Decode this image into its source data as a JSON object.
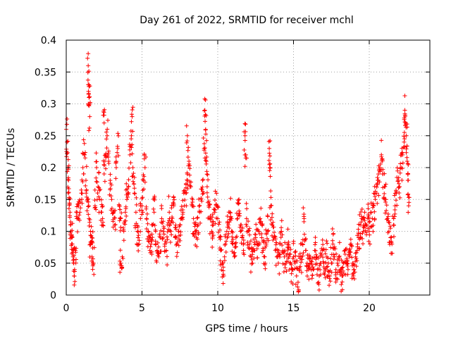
{
  "chart_data": {
    "type": "scatter",
    "title": "Day 261 of 2022, SRMTID for receiver mchl",
    "xlabel": "GPS time / hours",
    "ylabel": "SRMTID / TECUs",
    "xlim": [
      0,
      24
    ],
    "ylim": [
      0,
      0.4
    ],
    "xticks": [
      0,
      5,
      10,
      15,
      20
    ],
    "xtick_labels": [
      "0",
      "5",
      "10",
      "15",
      "20"
    ],
    "yticks": [
      0,
      0.05,
      0.1,
      0.15,
      0.2,
      0.25,
      0.3,
      0.35,
      0.4
    ],
    "ytick_labels": [
      "0",
      "0.05",
      "0.1",
      "0.15",
      "0.2",
      "0.25",
      "0.3",
      "0.35",
      "0.4"
    ],
    "grid": true,
    "marker": "+",
    "color": "#ff0000",
    "series": [
      {
        "name": "SRMTID",
        "description_of_trend": "noisy scatter of many '+' markers",
        "points": [
          [
            0.0,
            0.26
          ],
          [
            0.05,
            0.24
          ],
          [
            0.1,
            0.2
          ],
          [
            0.15,
            0.18
          ],
          [
            0.2,
            0.15
          ],
          [
            0.25,
            0.13
          ],
          [
            0.3,
            0.1
          ],
          [
            0.35,
            0.09
          ],
          [
            0.4,
            0.08
          ],
          [
            0.45,
            0.06
          ],
          [
            0.5,
            0.05
          ],
          [
            0.55,
            0.04
          ],
          [
            0.6,
            0.07
          ],
          [
            0.7,
            0.12
          ],
          [
            0.8,
            0.14
          ],
          [
            0.9,
            0.13
          ],
          [
            1.0,
            0.16
          ],
          [
            1.1,
            0.2
          ],
          [
            1.2,
            0.22
          ],
          [
            1.3,
            0.18
          ],
          [
            1.4,
            0.15
          ],
          [
            1.5,
            0.12
          ],
          [
            1.6,
            0.1
          ],
          [
            1.7,
            0.09
          ],
          [
            1.45,
            0.36
          ],
          [
            1.5,
            0.33
          ],
          [
            1.5,
            0.31
          ],
          [
            1.55,
            0.28
          ],
          [
            1.6,
            0.08
          ],
          [
            1.7,
            0.06
          ],
          [
            1.8,
            0.05
          ],
          [
            1.9,
            0.14
          ],
          [
            2.0,
            0.2
          ],
          [
            2.1,
            0.17
          ],
          [
            2.2,
            0.15
          ],
          [
            2.3,
            0.13
          ],
          [
            2.4,
            0.12
          ],
          [
            2.5,
            0.19
          ],
          [
            2.6,
            0.22
          ],
          [
            2.5,
            0.27
          ],
          [
            2.7,
            0.25
          ],
          [
            2.8,
            0.21
          ],
          [
            2.9,
            0.18
          ],
          [
            3.0,
            0.15
          ],
          [
            3.1,
            0.13
          ],
          [
            3.2,
            0.11
          ],
          [
            3.3,
            0.2
          ],
          [
            3.4,
            0.23
          ],
          [
            3.5,
            0.14
          ],
          [
            3.6,
            0.12
          ],
          [
            3.6,
            0.05
          ],
          [
            3.7,
            0.06
          ],
          [
            3.8,
            0.1
          ],
          [
            3.9,
            0.13
          ],
          [
            4.0,
            0.15
          ],
          [
            4.1,
            0.17
          ],
          [
            4.2,
            0.22
          ],
          [
            4.3,
            0.25
          ],
          [
            4.35,
            0.28
          ],
          [
            4.4,
            0.2
          ],
          [
            4.5,
            0.16
          ],
          [
            4.6,
            0.13
          ],
          [
            4.7,
            0.1
          ],
          [
            4.8,
            0.08
          ],
          [
            4.9,
            0.12
          ],
          [
            5.0,
            0.14
          ],
          [
            5.1,
            0.18
          ],
          [
            5.2,
            0.2
          ],
          [
            5.3,
            0.12
          ],
          [
            5.4,
            0.1
          ],
          [
            5.5,
            0.09
          ],
          [
            5.6,
            0.08
          ],
          [
            5.7,
            0.11
          ],
          [
            5.8,
            0.13
          ],
          [
            5.9,
            0.1
          ],
          [
            6.0,
            0.07
          ],
          [
            6.1,
            0.06
          ],
          [
            6.2,
            0.09
          ],
          [
            6.3,
            0.12
          ],
          [
            6.4,
            0.1
          ],
          [
            6.5,
            0.08
          ],
          [
            6.6,
            0.07
          ],
          [
            6.7,
            0.11
          ],
          [
            6.8,
            0.13
          ],
          [
            6.9,
            0.1
          ],
          [
            7.0,
            0.12
          ],
          [
            7.1,
            0.14
          ],
          [
            7.2,
            0.09
          ],
          [
            7.3,
            0.08
          ],
          [
            7.4,
            0.1
          ],
          [
            7.5,
            0.11
          ],
          [
            7.6,
            0.12
          ],
          [
            7.7,
            0.13
          ],
          [
            7.8,
            0.14
          ],
          [
            7.9,
            0.16
          ],
          [
            8.0,
            0.18
          ],
          [
            8.0,
            0.25
          ],
          [
            8.1,
            0.21
          ],
          [
            8.2,
            0.17
          ],
          [
            8.3,
            0.14
          ],
          [
            8.4,
            0.12
          ],
          [
            8.5,
            0.1
          ],
          [
            8.6,
            0.09
          ],
          [
            8.7,
            0.11
          ],
          [
            8.8,
            0.13
          ],
          [
            8.9,
            0.15
          ],
          [
            9.0,
            0.18
          ],
          [
            9.1,
            0.23
          ],
          [
            9.15,
            0.29
          ],
          [
            9.2,
            0.26
          ],
          [
            9.25,
            0.21
          ],
          [
            9.3,
            0.17
          ],
          [
            9.4,
            0.14
          ],
          [
            9.5,
            0.12
          ],
          [
            9.6,
            0.1
          ],
          [
            9.7,
            0.11
          ],
          [
            9.8,
            0.13
          ],
          [
            9.9,
            0.14
          ],
          [
            10.0,
            0.12
          ],
          [
            10.1,
            0.09
          ],
          [
            10.2,
            0.07
          ],
          [
            10.3,
            0.05
          ],
          [
            10.4,
            0.03
          ],
          [
            10.5,
            0.08
          ],
          [
            10.6,
            0.1
          ],
          [
            10.7,
            0.11
          ],
          [
            10.8,
            0.13
          ],
          [
            10.9,
            0.1
          ],
          [
            11.0,
            0.08
          ],
          [
            11.1,
            0.06
          ],
          [
            11.2,
            0.09
          ],
          [
            11.3,
            0.12
          ],
          [
            11.4,
            0.15
          ],
          [
            11.5,
            0.11
          ],
          [
            11.6,
            0.09
          ],
          [
            11.7,
            0.07
          ],
          [
            11.8,
            0.25
          ],
          [
            11.85,
            0.22
          ],
          [
            11.9,
            0.12
          ],
          [
            12.0,
            0.1
          ],
          [
            12.1,
            0.08
          ],
          [
            12.2,
            0.06
          ],
          [
            12.3,
            0.05
          ],
          [
            12.4,
            0.07
          ],
          [
            12.5,
            0.09
          ],
          [
            12.6,
            0.08
          ],
          [
            12.7,
            0.1
          ],
          [
            12.8,
            0.12
          ],
          [
            12.9,
            0.09
          ],
          [
            13.0,
            0.07
          ],
          [
            13.1,
            0.06
          ],
          [
            13.2,
            0.08
          ],
          [
            13.3,
            0.1
          ],
          [
            13.4,
            0.23
          ],
          [
            13.45,
            0.2
          ],
          [
            13.5,
            0.14
          ],
          [
            13.6,
            0.11
          ],
          [
            13.7,
            0.09
          ],
          [
            13.8,
            0.07
          ],
          [
            13.9,
            0.06
          ],
          [
            14.0,
            0.05
          ],
          [
            14.1,
            0.08
          ],
          [
            14.2,
            0.1
          ],
          [
            14.3,
            0.07
          ],
          [
            14.4,
            0.06
          ],
          [
            14.5,
            0.05
          ],
          [
            14.6,
            0.08
          ],
          [
            14.7,
            0.06
          ],
          [
            14.8,
            0.05
          ],
          [
            14.9,
            0.04
          ],
          [
            15.0,
            0.06
          ],
          [
            15.1,
            0.05
          ],
          [
            15.2,
            0.03
          ],
          [
            15.3,
            0.02
          ],
          [
            15.4,
            0.04
          ],
          [
            15.5,
            0.06
          ],
          [
            15.6,
            0.08
          ],
          [
            15.7,
            0.12
          ],
          [
            15.8,
            0.07
          ],
          [
            15.9,
            0.05
          ],
          [
            16.0,
            0.04
          ],
          [
            16.1,
            0.06
          ],
          [
            16.2,
            0.05
          ],
          [
            16.3,
            0.04
          ],
          [
            16.4,
            0.07
          ],
          [
            16.5,
            0.06
          ],
          [
            16.6,
            0.04
          ],
          [
            16.7,
            0.03
          ],
          [
            16.8,
            0.05
          ],
          [
            16.9,
            0.07
          ],
          [
            17.0,
            0.05
          ],
          [
            17.1,
            0.04
          ],
          [
            17.2,
            0.06
          ],
          [
            17.3,
            0.05
          ],
          [
            17.4,
            0.03
          ],
          [
            17.5,
            0.05
          ],
          [
            17.6,
            0.08
          ],
          [
            17.7,
            0.06
          ],
          [
            17.8,
            0.04
          ],
          [
            17.9,
            0.05
          ],
          [
            18.0,
            0.06
          ],
          [
            18.1,
            0.04
          ],
          [
            18.2,
            0.03
          ],
          [
            18.3,
            0.05
          ],
          [
            18.4,
            0.07
          ],
          [
            18.5,
            0.05
          ],
          [
            18.6,
            0.04
          ],
          [
            18.7,
            0.06
          ],
          [
            18.8,
            0.08
          ],
          [
            18.9,
            0.05
          ],
          [
            19.0,
            0.04
          ],
          [
            19.1,
            0.06
          ],
          [
            19.2,
            0.07
          ],
          [
            19.3,
            0.09
          ],
          [
            19.4,
            0.11
          ],
          [
            19.5,
            0.12
          ],
          [
            19.6,
            0.1
          ],
          [
            19.7,
            0.13
          ],
          [
            19.8,
            0.11
          ],
          [
            19.9,
            0.12
          ],
          [
            20.0,
            0.1
          ],
          [
            20.1,
            0.13
          ],
          [
            20.2,
            0.12
          ],
          [
            20.3,
            0.14
          ],
          [
            20.4,
            0.15
          ],
          [
            20.5,
            0.16
          ],
          [
            20.6,
            0.18
          ],
          [
            20.7,
            0.2
          ],
          [
            20.8,
            0.22
          ],
          [
            20.9,
            0.19
          ],
          [
            21.0,
            0.17
          ],
          [
            21.1,
            0.15
          ],
          [
            21.2,
            0.12
          ],
          [
            21.3,
            0.1
          ],
          [
            21.4,
            0.09
          ],
          [
            21.5,
            0.08
          ],
          [
            21.6,
            0.11
          ],
          [
            21.7,
            0.14
          ],
          [
            21.8,
            0.16
          ],
          [
            21.9,
            0.18
          ],
          [
            22.0,
            0.17
          ],
          [
            22.1,
            0.2
          ],
          [
            22.2,
            0.22
          ],
          [
            22.3,
            0.24
          ],
          [
            22.35,
            0.29
          ],
          [
            22.4,
            0.27
          ],
          [
            22.45,
            0.25
          ],
          [
            22.5,
            0.21
          ],
          [
            22.55,
            0.18
          ],
          [
            22.6,
            0.14
          ]
        ]
      }
    ]
  }
}
